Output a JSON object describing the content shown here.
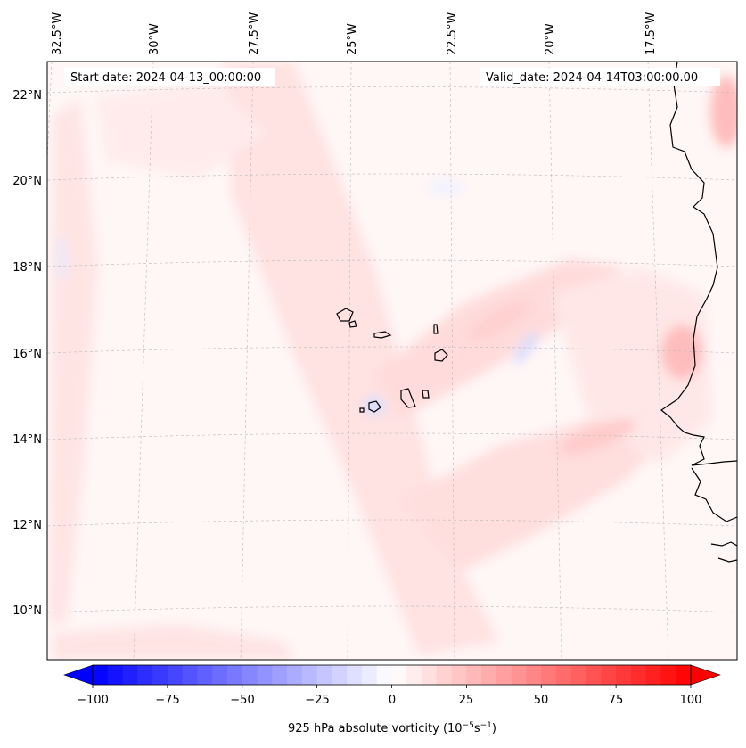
{
  "map": {
    "start_date_label": "Start date: 2024-04-13_00:00:00",
    "valid_date_label": "Valid_date: 2024-04-14T03:00:00.00",
    "lon_labels": [
      "32.5°W",
      "30°W",
      "27.5°W",
      "25°W",
      "22.5°W",
      "20°W",
      "17.5°W"
    ],
    "lat_labels": [
      "22°N",
      "20°N",
      "18°N",
      "16°N",
      "14°N",
      "12°N",
      "10°N"
    ],
    "field": "925 hPa absolute vorticity"
  },
  "colorbar": {
    "label_prefix": "925 hPa absolute vorticity (10",
    "label_exp1": "−5",
    "label_mid": "s",
    "label_exp2": "−1",
    "label_suffix": ")",
    "ticks": [
      "−100",
      "−75",
      "−50",
      "−25",
      "0",
      "25",
      "50",
      "75",
      "100"
    ],
    "range": [
      -100,
      100
    ],
    "colors": {
      "min": "#0000ff",
      "mid": "#ffffff",
      "max": "#ff0000"
    }
  }
}
